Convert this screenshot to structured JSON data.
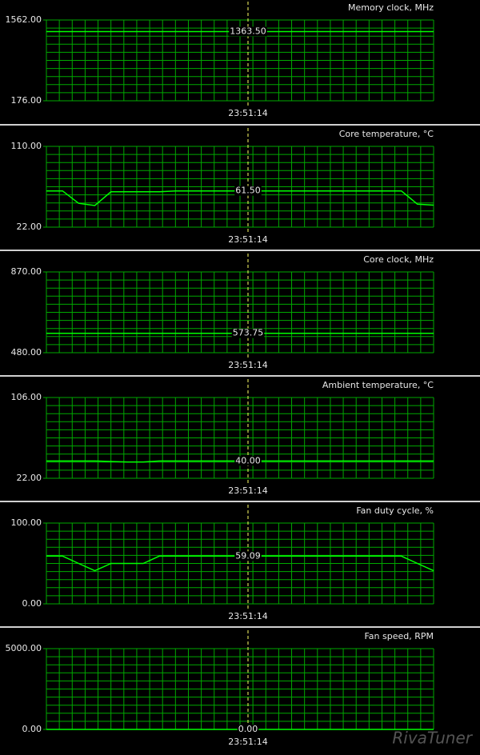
{
  "chart_data": [
    {
      "type": "line",
      "title": "Memory clock, MHz",
      "color": "#00ff00",
      "values": [
        1363.5,
        1363.5,
        1363.5,
        1363.5,
        1363.5,
        1363.5,
        1363.5,
        1363.5,
        1363.5,
        1363.5,
        1363.5,
        1363.5,
        1363.5,
        1363.5,
        1363.5,
        1363.5,
        1363.5,
        1363.5,
        1363.5,
        1363.5,
        1363.5,
        1363.5,
        1363.5,
        1363.5,
        1363.5
      ],
      "ylim": [
        176,
        1562
      ],
      "yticks": [
        {
          "value": 176,
          "label": "176.00"
        },
        {
          "value": 1562,
          "label": "1562.00"
        }
      ],
      "cursor": {
        "value": 1363.5,
        "label": "1363.50"
      },
      "cursor_time": "23:51:14",
      "grid": true
    },
    {
      "type": "line",
      "title": "Core temperature, °C",
      "color": "#00ff00",
      "values": [
        61.5,
        61.5,
        48,
        45.5,
        60.5,
        60.5,
        60.5,
        60.5,
        61.5,
        61.5,
        61.5,
        61.5,
        61.5,
        61.5,
        61.5,
        61.5,
        61.5,
        61.5,
        61.5,
        61.5,
        61.5,
        61.5,
        61.5,
        47,
        46
      ],
      "ylim": [
        22,
        110
      ],
      "yticks": [
        {
          "value": 22,
          "label": "22.00"
        },
        {
          "value": 110,
          "label": "110.00"
        }
      ],
      "cursor": {
        "value": 61.5,
        "label": "61.50"
      },
      "cursor_time": "23:51:14",
      "grid": true
    },
    {
      "type": "line",
      "title": "Core clock, MHz",
      "color": "#00ff00",
      "values": [
        573.75,
        573.75,
        573.75,
        573.75,
        573.75,
        573.75,
        573.75,
        573.75,
        573.75,
        573.75,
        573.75,
        573.75,
        573.75,
        573.75,
        573.75,
        573.75,
        573.75,
        573.75,
        573.75,
        573.75,
        573.75,
        573.75,
        573.75,
        573.75,
        573.75
      ],
      "ylim": [
        480,
        870
      ],
      "yticks": [
        {
          "value": 480,
          "label": "480.00"
        },
        {
          "value": 870,
          "label": "870.00"
        }
      ],
      "cursor": {
        "value": 573.75,
        "label": "573.75"
      },
      "cursor_time": "23:51:14",
      "grid": true
    },
    {
      "type": "line",
      "title": "Ambient temperature, °C",
      "color": "#00ff00",
      "values": [
        40,
        40,
        40,
        40,
        39.5,
        39,
        39,
        40,
        40,
        40,
        40,
        40,
        40,
        40,
        40,
        40,
        40,
        40,
        40,
        40,
        40,
        40,
        40,
        40,
        40
      ],
      "ylim": [
        22,
        106
      ],
      "yticks": [
        {
          "value": 22,
          "label": "22.00"
        },
        {
          "value": 106,
          "label": "106.00"
        }
      ],
      "cursor": {
        "value": 40,
        "label": "40.00"
      },
      "cursor_time": "23:51:14",
      "grid": true
    },
    {
      "type": "line",
      "title": "Fan duty cycle, %",
      "color": "#00ff00",
      "values": [
        59.09,
        59.09,
        50,
        41,
        50,
        50,
        50,
        59.09,
        59.09,
        59.09,
        59.09,
        59.09,
        59.09,
        59.09,
        59.09,
        59.09,
        59.09,
        59.09,
        59.09,
        59.09,
        59.09,
        59.09,
        59.09,
        50,
        41
      ],
      "ylim": [
        0,
        100
      ],
      "yticks": [
        {
          "value": 0,
          "label": "0.00"
        },
        {
          "value": 100,
          "label": "100.00"
        }
      ],
      "cursor": {
        "value": 59.09,
        "label": "59.09"
      },
      "cursor_time": "23:51:14",
      "grid": true
    },
    {
      "type": "line",
      "title": "Fan speed, RPM",
      "color": "#00ff00",
      "values": [
        0,
        0,
        0,
        0,
        0,
        0,
        0,
        0,
        0,
        0,
        0,
        0,
        0,
        0,
        0,
        0,
        0,
        0,
        0,
        0,
        0,
        0,
        0,
        0,
        0
      ],
      "ylim": [
        0,
        5000
      ],
      "yticks": [
        {
          "value": 0,
          "label": "0.00"
        },
        {
          "value": 5000,
          "label": "5000.00"
        }
      ],
      "cursor": {
        "value": 0,
        "label": "0.00"
      },
      "cursor_time": "23:51:14",
      "grid": true
    }
  ],
  "watermark": "RivaTuner"
}
